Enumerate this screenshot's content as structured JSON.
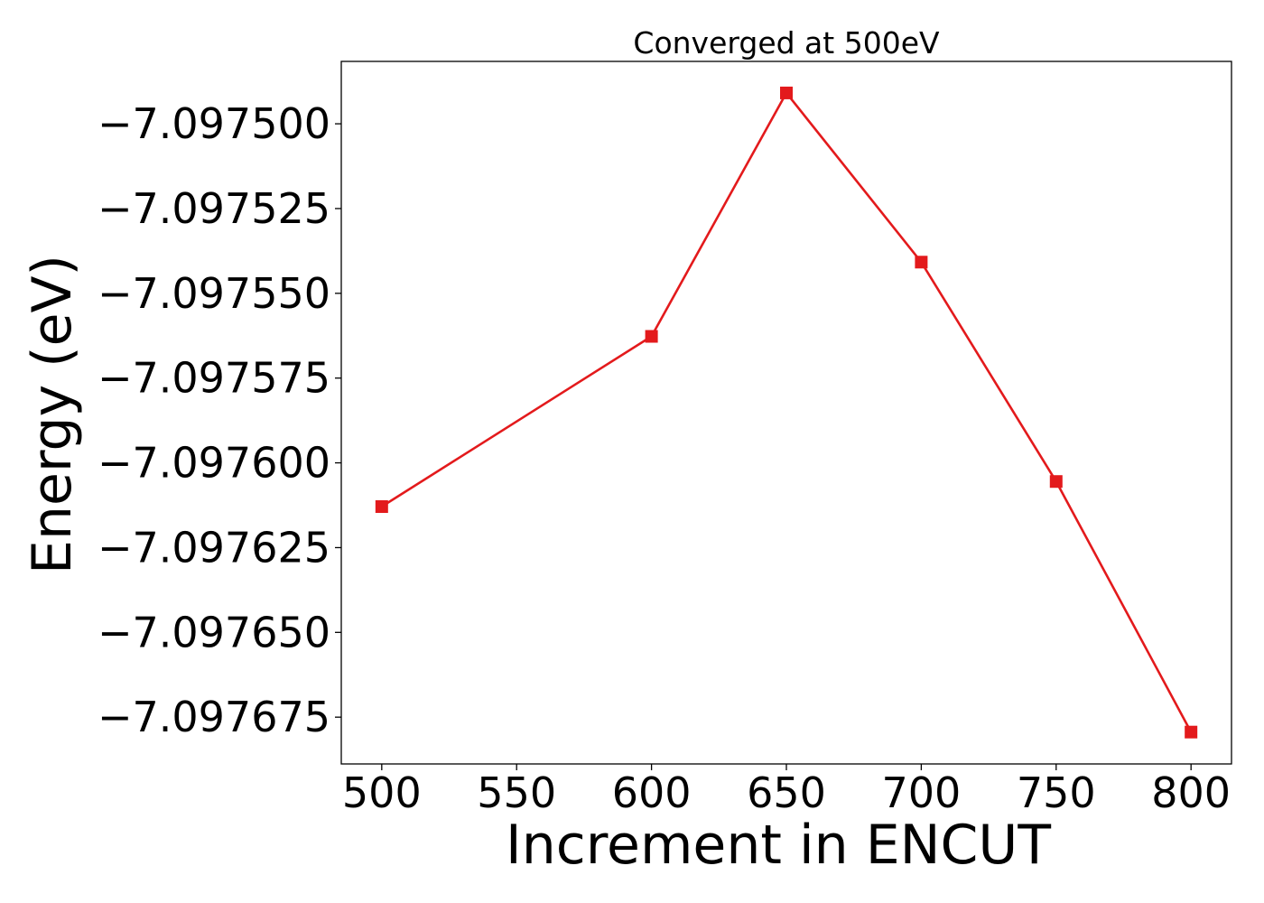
{
  "chart_data": {
    "type": "line",
    "title": "Converged at 500eV",
    "xlabel": "Increment in ENCUT",
    "ylabel": "Energy (eV)",
    "x": [
      500,
      600,
      650,
      700,
      750,
      800
    ],
    "series": [
      {
        "values": [
          -7.0976129,
          -7.0975627,
          -7.0974909,
          -7.0975408,
          -7.0976055,
          -7.0976794
        ],
        "color": "#e31a1c",
        "marker": "square"
      }
    ],
    "xlim": [
      485,
      815
    ],
    "ylim": [
      -7.0976888,
      -7.0974816
    ],
    "x_ticks": [
      500,
      550,
      600,
      650,
      700,
      750,
      800
    ],
    "x_tick_labels": [
      "500",
      "550",
      "600",
      "650",
      "700",
      "750",
      "800"
    ],
    "y_ticks": [
      -7.0975,
      -7.097525,
      -7.09755,
      -7.097575,
      -7.0976,
      -7.097625,
      -7.09765,
      -7.097675
    ],
    "y_tick_labels": [
      "−7.097500",
      "−7.097525",
      "−7.097550",
      "−7.097575",
      "−7.097600",
      "−7.097625",
      "−7.097650",
      "−7.097675"
    ],
    "grid": false,
    "legend": "none"
  }
}
